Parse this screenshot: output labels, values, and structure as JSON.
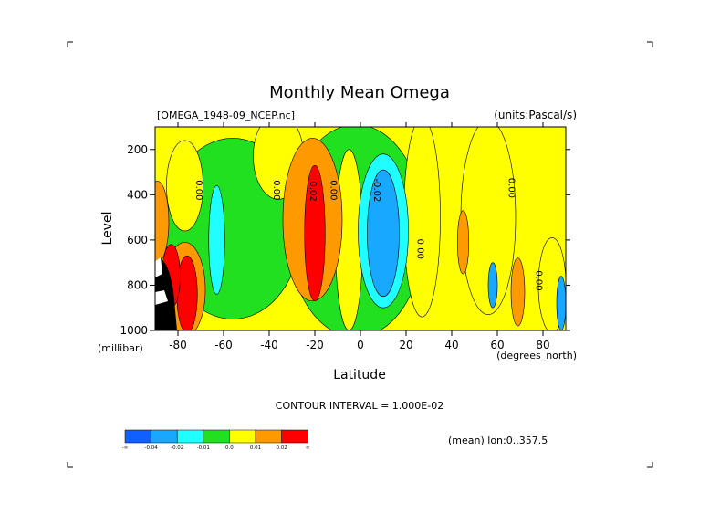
{
  "chart_data": {
    "type": "heatmap",
    "title": "Monthly Mean Omega",
    "dataset_label": "[OMEGA_1948-09_NCEP.nc]",
    "units_label": "(units:Pascal/s)",
    "xlabel": "Latitude",
    "x_units": "(degrees_north)",
    "ylabel": "Level",
    "y_units": "(millibar)",
    "xlim": [
      -90,
      90
    ],
    "ylim": [
      1000,
      100
    ],
    "x_ticks": [
      {
        "value": -80,
        "label": "-80"
      },
      {
        "value": -60,
        "label": "-60"
      },
      {
        "value": -40,
        "label": "-40"
      },
      {
        "value": -20,
        "label": "-20"
      },
      {
        "value": 0,
        "label": "0"
      },
      {
        "value": 20,
        "label": "20"
      },
      {
        "value": 40,
        "label": "40"
      },
      {
        "value": 60,
        "label": "60"
      },
      {
        "value": 80,
        "label": "80"
      }
    ],
    "y_ticks": [
      {
        "value": 200,
        "label": "200"
      },
      {
        "value": 400,
        "label": "400"
      },
      {
        "value": 600,
        "label": "600"
      },
      {
        "value": 800,
        "label": "800"
      },
      {
        "value": 1000,
        "label": "1000"
      }
    ],
    "contour_labels": [
      {
        "text": "0.00",
        "lat": -72,
        "lev": 380
      },
      {
        "text": "0.00",
        "lat": -38,
        "lev": 380
      },
      {
        "text": "0.02",
        "lat": -22,
        "lev": 385
      },
      {
        "text": "0.00",
        "lat": -13,
        "lev": 380
      },
      {
        "text": "-0.02",
        "lat": 6,
        "lev": 380
      },
      {
        "text": "0.00",
        "lat": 25,
        "lev": 640
      },
      {
        "text": "0.00",
        "lat": 65,
        "lev": 370
      },
      {
        "text": "0.00",
        "lat": 77,
        "lev": 780
      }
    ],
    "contour_interval_text": "CONTOUR INTERVAL = 1.000E-02",
    "mean_label": "(mean) lon:0..357.5",
    "colorbar": {
      "colors": [
        "#1060ff",
        "#18a8ff",
        "#20ffff",
        "#20e020",
        "#ffff00",
        "#ff9900",
        "#ff0000"
      ],
      "labels": [
        "-∞",
        "-0.04",
        "-0.02",
        "-0.01",
        "0.0",
        "0.01",
        "0.02",
        "∞"
      ]
    },
    "blobs": [
      {
        "color": "#20e020",
        "lat": -56,
        "lev": 550,
        "rlat": 30,
        "rlev": 400
      },
      {
        "color": "#ffff00",
        "lat": -36,
        "lev": 230,
        "rlat": 11,
        "rlev": 190
      },
      {
        "color": "#20e020",
        "lat": -2,
        "lev": 560,
        "rlat": 30,
        "rlev": 470
      },
      {
        "color": "#ffff00",
        "lat": -5,
        "lev": 600,
        "rlat": 6,
        "rlev": 400
      },
      {
        "color": "#ffff00",
        "lat": 27,
        "lev": 500,
        "rlat": 8,
        "rlev": 440
      },
      {
        "color": "#ffff00",
        "lat": 56,
        "lev": 500,
        "rlat": 12,
        "rlev": 430
      },
      {
        "color": "#ffff00",
        "lat": 84,
        "lev": 800,
        "rlat": 6,
        "rlev": 210
      },
      {
        "color": "#ffff00",
        "lat": -77,
        "lev": 360,
        "rlat": 8,
        "rlev": 200
      },
      {
        "color": "#ff9900",
        "lat": -21,
        "lev": 510,
        "rlat": 13,
        "rlev": 360
      },
      {
        "color": "#ff0000",
        "lat": -20,
        "lev": 570,
        "rlat": 4.5,
        "rlev": 300
      },
      {
        "color": "#20ffff",
        "lat": 10,
        "lev": 560,
        "rlat": 11,
        "rlev": 340
      },
      {
        "color": "#18a8ff",
        "lat": 10,
        "lev": 570,
        "rlat": 7,
        "rlev": 280
      },
      {
        "color": "#ff9900",
        "lat": -89,
        "lev": 520,
        "rlat": 5,
        "rlev": 180
      },
      {
        "color": "#20ffff",
        "lat": -63,
        "lev": 600,
        "rlat": 3.5,
        "rlev": 240
      },
      {
        "color": "#ff9900",
        "lat": -77,
        "lev": 820,
        "rlat": 9,
        "rlev": 210
      },
      {
        "color": "#ff0000",
        "lat": -76,
        "lev": 840,
        "rlat": 4.5,
        "rlev": 170
      },
      {
        "color": "#ff0000",
        "lat": -83,
        "lev": 760,
        "rlat": 4,
        "rlev": 140
      },
      {
        "color": "#ff9900",
        "lat": 45,
        "lev": 610,
        "rlat": 2.5,
        "rlev": 140
      },
      {
        "color": "#ff9900",
        "lat": 69,
        "lev": 830,
        "rlat": 3,
        "rlev": 150
      },
      {
        "color": "#18a8ff",
        "lat": 58,
        "lev": 800,
        "rlat": 2,
        "rlev": 100
      },
      {
        "color": "#18a8ff",
        "lat": 88,
        "lev": 880,
        "rlat": 2,
        "rlev": 120
      }
    ]
  }
}
